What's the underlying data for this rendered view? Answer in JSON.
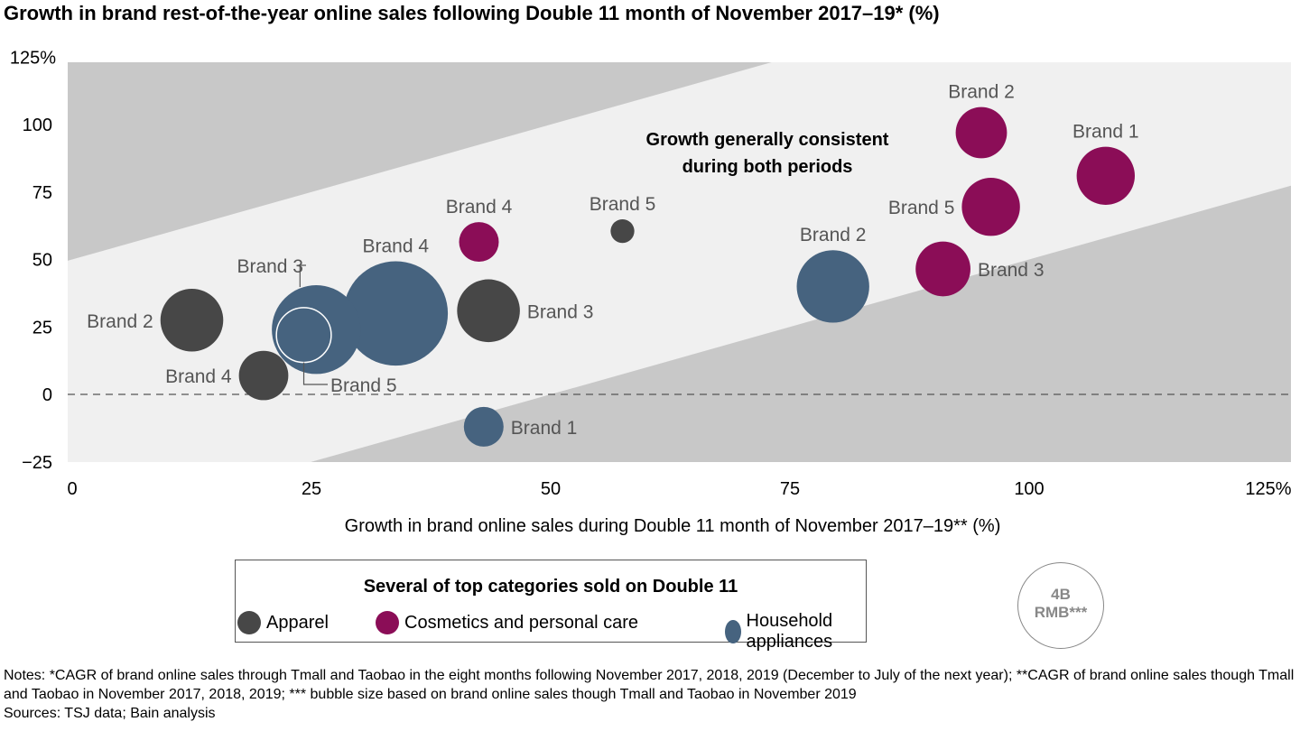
{
  "chart_data": {
    "type": "scatter",
    "title": "Growth in brand rest-of-the-year online sales following Double 11 month of November 2017–19* (%)",
    "xlabel": "Growth in brand online sales during Double 11 month of November 2017–19** (%)",
    "ylabel": "",
    "xlim": [
      0,
      125
    ],
    "ylim": [
      -25,
      125
    ],
    "x_ticks": [
      "0",
      "25",
      "50",
      "75",
      "100",
      "125%"
    ],
    "y_ticks": [
      "125%",
      "100",
      "75",
      "50",
      "25",
      "0",
      "−25"
    ],
    "bubble_size_unit": "B RMB",
    "annotation": [
      "Growth generally consistent",
      "during both periods"
    ],
    "bands": {
      "upper_boundary": "y = x + 50",
      "lower_boundary": "y = x − 50",
      "colors": {
        "inner": "#f0f0f0",
        "outer": "#c8c8c8"
      }
    },
    "series": [
      {
        "name": "Apparel",
        "color": "#474747",
        "points": [
          {
            "label": "Brand 2",
            "x": 12.5,
            "y": 27.5,
            "size": 2.1,
            "label_pos": "left"
          },
          {
            "label": "Brand 4",
            "x": 20,
            "y": 7,
            "size": 1.3,
            "label_pos": "left"
          },
          {
            "label": "Brand 3",
            "x": 43.5,
            "y": 31,
            "size": 2.1,
            "label_pos": "right"
          },
          {
            "label": "Brand 5",
            "x": 57.5,
            "y": 60.5,
            "size": 0.3,
            "label_pos": "above"
          }
        ]
      },
      {
        "name": "Cosmetics and personal care",
        "color": "#8b0d57",
        "points": [
          {
            "label": "Brand 4",
            "x": 42.5,
            "y": 56.5,
            "size": 0.84,
            "label_pos": "above"
          },
          {
            "label": "Brand 2",
            "x": 95,
            "y": 97,
            "size": 1.4,
            "label_pos": "above"
          },
          {
            "label": "Brand 1",
            "x": 108,
            "y": 81,
            "size": 1.8,
            "label_pos": "above"
          },
          {
            "label": "Brand 5",
            "x": 96,
            "y": 69.5,
            "size": 1.8,
            "label_pos": "left"
          },
          {
            "label": "Brand 3",
            "x": 91,
            "y": 46.5,
            "size": 1.6,
            "label_pos": "right"
          }
        ]
      },
      {
        "name": "Household appliances",
        "color": "#46637f",
        "points": [
          {
            "label": "Brand 3",
            "x": 25.5,
            "y": 24,
            "size": 4.2,
            "label_pos": "leader-up"
          },
          {
            "label": "Brand 4",
            "x": 33.8,
            "y": 30,
            "size": 5.8,
            "label_pos": "above"
          },
          {
            "label": "Brand 5",
            "x": 24.2,
            "y": 22,
            "size": 1.6,
            "label_pos": "leader-down"
          },
          {
            "label": "Brand 2",
            "x": 79.5,
            "y": 40,
            "size": 2.8,
            "label_pos": "above"
          },
          {
            "label": "Brand 1",
            "x": 43,
            "y": -12,
            "size": 0.84,
            "label_pos": "right"
          }
        ]
      }
    ]
  },
  "legend": {
    "title": "Several of top categories sold on Double 11",
    "items": [
      "Apparel",
      "Cosmetics and personal care",
      "Household appliances"
    ],
    "reference_bubble": {
      "value": "4B",
      "unit": "RMB***"
    }
  },
  "notes": "Notes: *CAGR of brand online sales through Tmall and Taobao in the eight months following November 2017, 2018, 2019 (December to July of the next year); **CAGR of brand online sales though Tmall and Taobao in November 2017, 2018, 2019; *** bubble size based on brand online sales though Tmall and Taobao in November 2019",
  "sources": "Sources: TSJ data; Bain analysis"
}
